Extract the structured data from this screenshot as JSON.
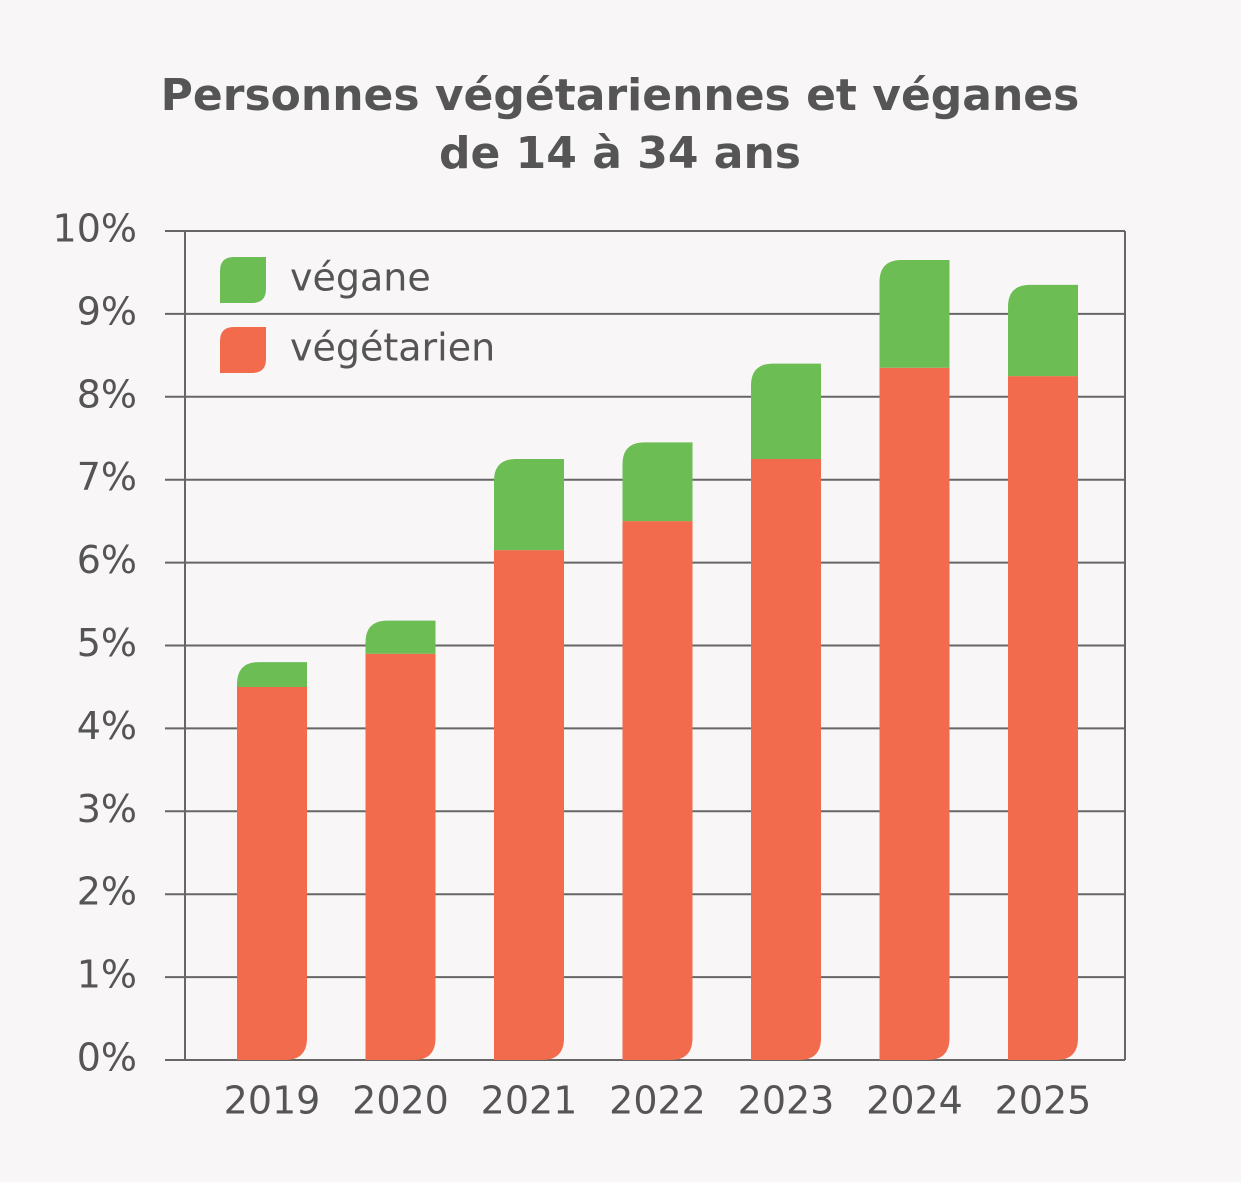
{
  "chart_data": {
    "type": "stacked-bar",
    "title": [
      "Personnes végétariennes et véganes",
      "de 14 à 34 ans"
    ],
    "categories": [
      "2019",
      "2020",
      "2021",
      "2022",
      "2023",
      "2024",
      "2025"
    ],
    "series": [
      {
        "name": "végétarien",
        "color": "#f26b4c",
        "values": [
          4.5,
          4.9,
          6.15,
          6.5,
          7.25,
          8.35,
          8.25
        ]
      },
      {
        "name": "végane",
        "color": "#6dbd55",
        "values": [
          0.3,
          0.4,
          1.1,
          0.95,
          1.15,
          1.3,
          1.1
        ]
      }
    ],
    "ylim": [
      0,
      10
    ],
    "yticks": [
      {
        "value": 0,
        "label": "0%"
      },
      {
        "value": 1,
        "label": "1%"
      },
      {
        "value": 2,
        "label": "2%"
      },
      {
        "value": 3,
        "label": "3%"
      },
      {
        "value": 4,
        "label": "4%"
      },
      {
        "value": 5,
        "label": "5%"
      },
      {
        "value": 6,
        "label": "6%"
      },
      {
        "value": 7,
        "label": "7%"
      },
      {
        "value": 8,
        "label": "8%"
      },
      {
        "value": 9,
        "label": "9%"
      },
      {
        "value": 10,
        "label": "10%"
      }
    ],
    "grid": true,
    "legend": "top-left"
  }
}
